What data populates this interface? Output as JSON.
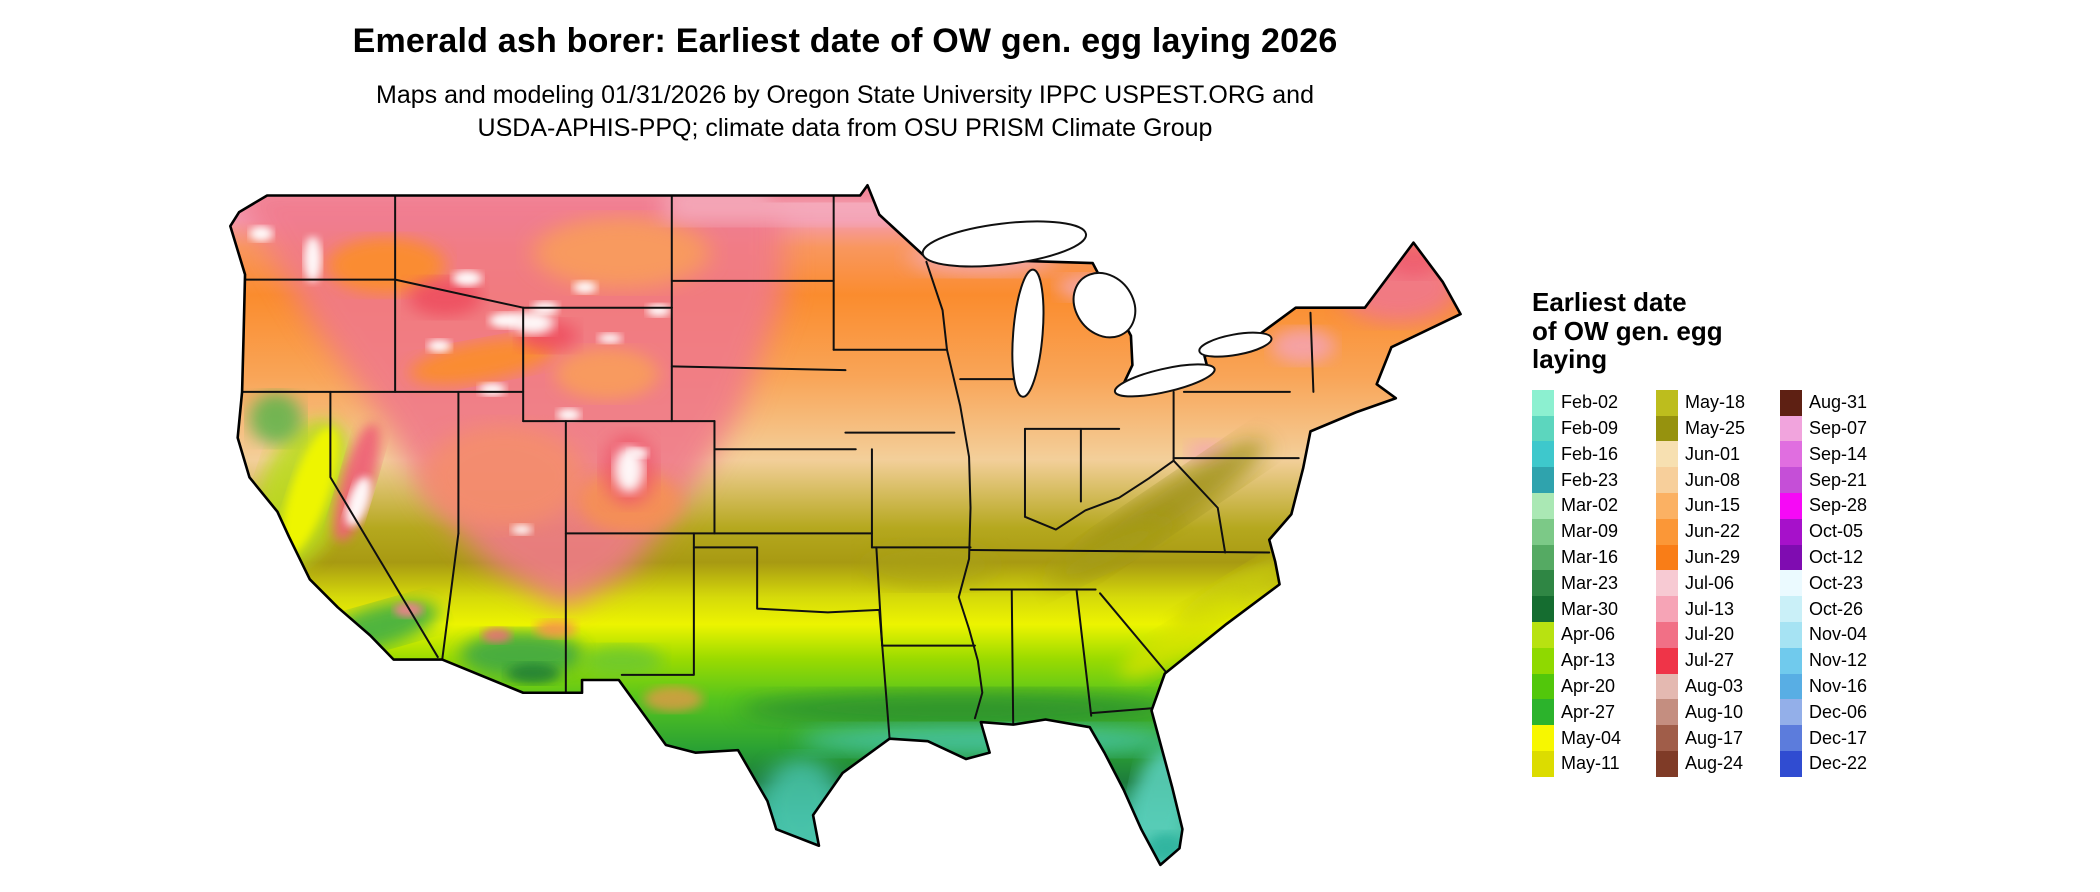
{
  "header": {
    "title": "Emerald ash borer: Earliest date of OW gen. egg laying 2026",
    "subtitle_line1": "Maps and modeling 01/31/2026 by Oregon State University IPPC USPEST.ORG and",
    "subtitle_line2": "USDA-APHIS-PPQ; climate data from OSU PRISM Climate Group"
  },
  "legend": {
    "title_lines": [
      "Earliest date",
      "of OW gen. egg",
      "laying"
    ],
    "columns": [
      {
        "entries": [
          {
            "label": "Feb-02",
            "color": "#8CF0D0"
          },
          {
            "label": "Feb-09",
            "color": "#5CD6BE"
          },
          {
            "label": "Feb-16",
            "color": "#3EC8CC"
          },
          {
            "label": "Feb-23",
            "color": "#2FA3AD"
          },
          {
            "label": "Mar-02",
            "color": "#AAE8B4"
          },
          {
            "label": "Mar-09",
            "color": "#7CC987"
          },
          {
            "label": "Mar-16",
            "color": "#55AA63"
          },
          {
            "label": "Mar-23",
            "color": "#2F8644"
          },
          {
            "label": "Mar-30",
            "color": "#156D30"
          },
          {
            "label": "Apr-06",
            "color": "#B8E211"
          },
          {
            "label": "Apr-13",
            "color": "#8FD900"
          },
          {
            "label": "Apr-20",
            "color": "#52C70B"
          },
          {
            "label": "Apr-27",
            "color": "#2CB32C"
          },
          {
            "label": "May-04",
            "color": "#F7F700"
          },
          {
            "label": "May-11",
            "color": "#DCDC00"
          }
        ]
      },
      {
        "entries": [
          {
            "label": "May-18",
            "color": "#BDBD1D"
          },
          {
            "label": "May-25",
            "color": "#96920E"
          },
          {
            "label": "Jun-01",
            "color": "#F7E0B1"
          },
          {
            "label": "Jun-08",
            "color": "#F7CF9B"
          },
          {
            "label": "Jun-15",
            "color": "#FBB163"
          },
          {
            "label": "Jun-22",
            "color": "#FB9737"
          },
          {
            "label": "Jun-29",
            "color": "#F97D17"
          },
          {
            "label": "Jul-06",
            "color": "#F7CAD3"
          },
          {
            "label": "Jul-13",
            "color": "#F6A4B6"
          },
          {
            "label": "Jul-20",
            "color": "#F17086"
          },
          {
            "label": "Jul-27",
            "color": "#EF3448"
          },
          {
            "label": "Aug-03",
            "color": "#E4B9B1"
          },
          {
            "label": "Aug-10",
            "color": "#C48E80"
          },
          {
            "label": "Aug-17",
            "color": "#A05D49"
          },
          {
            "label": "Aug-24",
            "color": "#7F3B27"
          }
        ]
      },
      {
        "entries": [
          {
            "label": "Aug-31",
            "color": "#5E2013"
          },
          {
            "label": "Sep-07",
            "color": "#F1A4DD"
          },
          {
            "label": "Sep-14",
            "color": "#E06EE0"
          },
          {
            "label": "Sep-21",
            "color": "#C54FD7"
          },
          {
            "label": "Sep-28",
            "color": "#F609F6"
          },
          {
            "label": "Oct-05",
            "color": "#A611CA"
          },
          {
            "label": "Oct-12",
            "color": "#7F0CB1"
          },
          {
            "label": "Oct-23",
            "color": "#EBFAFF"
          },
          {
            "label": "Oct-26",
            "color": "#CAF0F8"
          },
          {
            "label": "Nov-04",
            "color": "#A6E3F3"
          },
          {
            "label": "Nov-12",
            "color": "#70CAED"
          },
          {
            "label": "Nov-16",
            "color": "#58AEE4"
          },
          {
            "label": "Dec-06",
            "color": "#93AFE9"
          },
          {
            "label": "Dec-17",
            "color": "#5C7CDC"
          },
          {
            "label": "Dec-22",
            "color": "#304CD1"
          }
        ]
      }
    ]
  }
}
